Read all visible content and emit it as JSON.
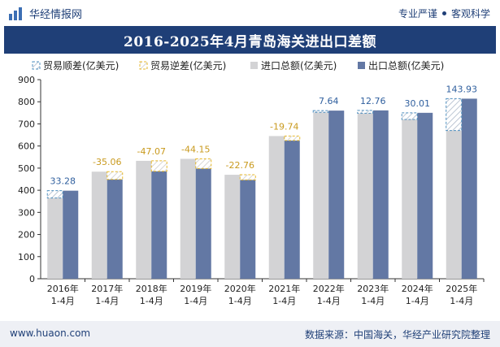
{
  "header": {
    "brand": "华经情报网",
    "right_a": "专业严谨",
    "right_b": "客观科学"
  },
  "title": "2016-2025年4月青岛海关进出口差额",
  "footer": {
    "website": "www.huaon.com",
    "source": "数据来源：中国海关，华经产业研究院整理"
  },
  "colors": {
    "import": "#d3d3d5",
    "export": "#6378a4",
    "surplus": "#4f8fbf",
    "deficit": "#e8b92c",
    "surplus_label": "#2f5f9e",
    "deficit_label": "#c99a1e",
    "title_bg": "#1f3f77"
  },
  "chart_data": {
    "type": "bar",
    "categories": [
      "2016年\n1-4月",
      "2017年\n1-4月",
      "2018年\n1-4月",
      "2019年\n1-4月",
      "2020年\n1-4月",
      "2021年\n1-4月",
      "2022年\n1-4月",
      "2023年\n1-4月",
      "2024年\n1-4月",
      "2025年\n1-4月"
    ],
    "series": [
      {
        "name": "进口总额(亿美元)",
        "values": [
          365,
          484,
          533,
          542,
          470,
          645,
          752,
          748,
          720,
          670
        ]
      },
      {
        "name": "出口总额(亿美元)",
        "values": [
          398,
          449,
          486,
          498,
          447,
          625,
          760,
          761,
          750,
          814
        ]
      }
    ],
    "balance": {
      "values": [
        33.28,
        -35.06,
        -47.07,
        -44.15,
        -22.76,
        -19.74,
        7.64,
        12.76,
        30.01,
        143.93
      ],
      "labels": [
        "33.28",
        "-35.06",
        "-47.07",
        "-44.15",
        "-22.76",
        "-19.74",
        "7.64",
        "12.76",
        "30.01",
        "143.93"
      ]
    },
    "legend": [
      "贸易顺差(亿美元)",
      "贸易逆差(亿美元)",
      "进口总额(亿美元)",
      "出口总额(亿美元)"
    ],
    "legend_position": "top",
    "ylim": [
      0,
      900
    ],
    "yticks": [
      0,
      100,
      200,
      300,
      400,
      500,
      600,
      700,
      800,
      900
    ],
    "grid": false
  }
}
